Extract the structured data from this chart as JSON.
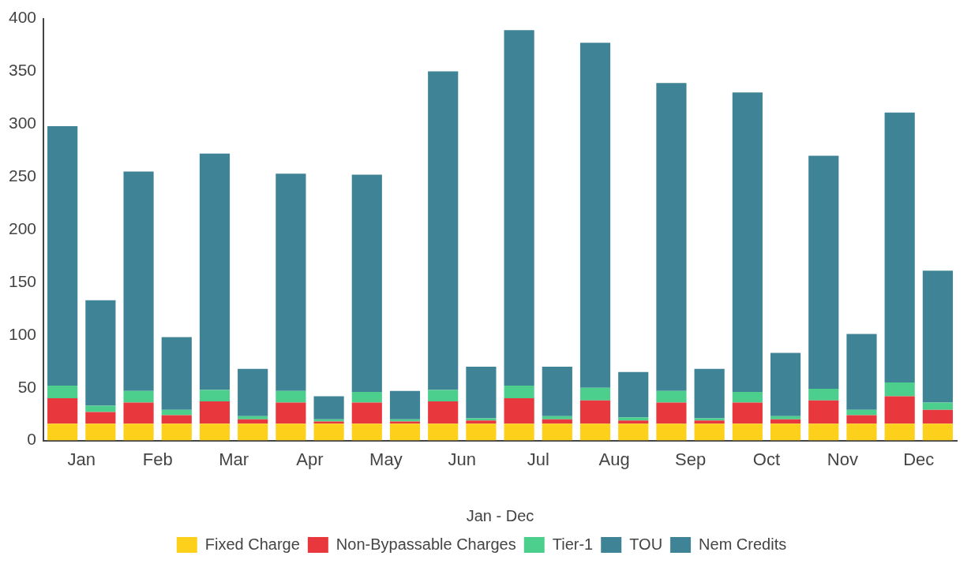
{
  "chart_data": {
    "type": "bar",
    "stacked": true,
    "xlabel": "Jan - Dec",
    "legend": "bottom",
    "grid": false,
    "categories": [
      "Jan",
      null,
      "Feb",
      null,
      "Mar",
      null,
      "Apr",
      null,
      "May",
      null,
      "Jun",
      null,
      "Jul",
      null,
      "Aug",
      null,
      "Sep",
      null,
      "Oct",
      null,
      "Nov",
      null,
      "Dec",
      null
    ],
    "ylim": [
      0,
      400
    ],
    "yticks": [
      0,
      50,
      100,
      150,
      200,
      250,
      300,
      350,
      400
    ],
    "series": [
      {
        "name": "Fixed Charge",
        "color": "#fdd11b",
        "values": [
          16,
          16,
          16,
          16,
          16,
          16,
          16,
          16,
          16,
          16,
          16,
          16,
          16,
          16,
          16,
          16,
          16,
          16,
          16,
          16,
          16,
          16,
          16,
          16
        ]
      },
      {
        "name": "Non-Bypassable Charges",
        "color": "#e8383d",
        "values": [
          24,
          11,
          20,
          8,
          21,
          4,
          20,
          2,
          20,
          2,
          21,
          3,
          24,
          4,
          22,
          3,
          20,
          3,
          20,
          4,
          22,
          8,
          26,
          13
        ]
      },
      {
        "name": "Tier-1",
        "color": "#4ccf8c",
        "values": [
          12,
          6,
          11,
          5,
          11,
          3,
          11,
          2,
          10,
          2,
          11,
          2,
          12,
          3,
          12,
          3,
          11,
          2,
          10,
          3,
          11,
          5,
          13,
          7
        ]
      },
      {
        "name": "TOU",
        "color": "#3f8396",
        "values": [
          246,
          null,
          208,
          null,
          224,
          null,
          206,
          null,
          206,
          null,
          302,
          null,
          337,
          null,
          327,
          null,
          292,
          null,
          284,
          null,
          221,
          null,
          256,
          null
        ]
      },
      {
        "name": "Nem Credits",
        "color": "#3f8396",
        "values": [
          null,
          100,
          null,
          69,
          null,
          45,
          null,
          22,
          null,
          27,
          null,
          49,
          null,
          47,
          null,
          43,
          null,
          47,
          null,
          60,
          null,
          72,
          null,
          125
        ]
      }
    ]
  }
}
